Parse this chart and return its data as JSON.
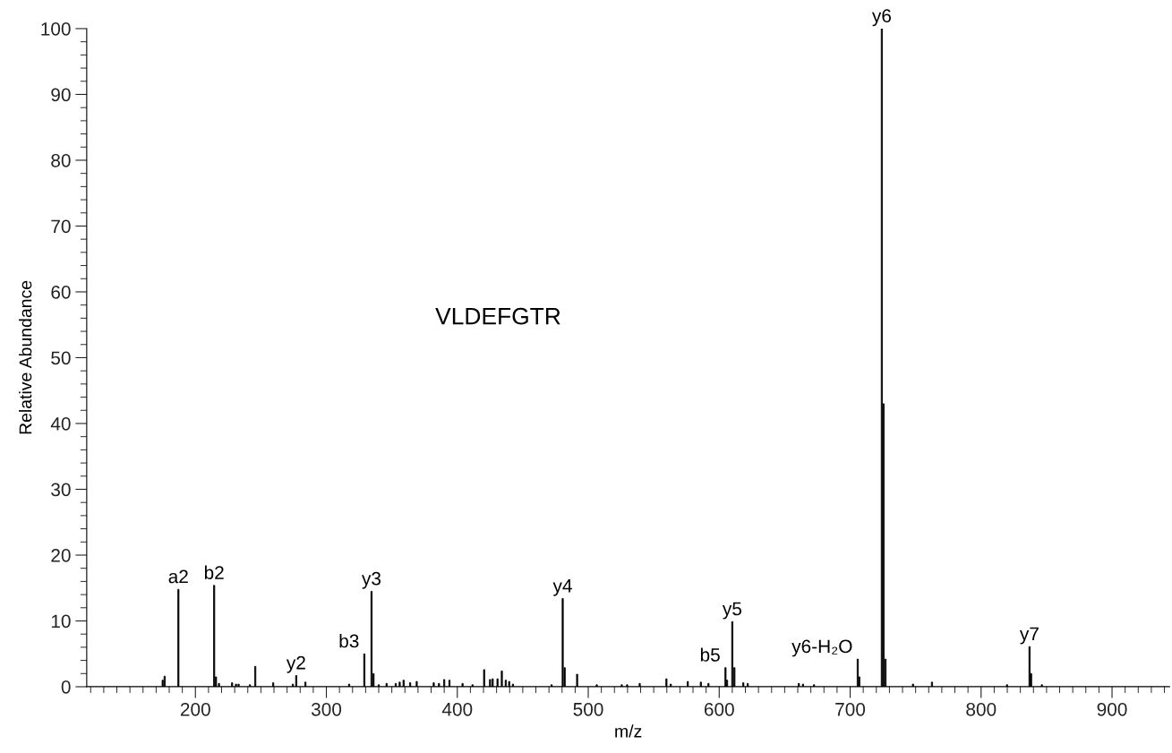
{
  "chart_data": {
    "type": "bar",
    "xlabel": "m/z",
    "ylabel": "Relative Abundance",
    "color": "#000000",
    "x": [
      175,
      176.5,
      187,
      214.3,
      215.7,
      218,
      228,
      231,
      233,
      241.6,
      245.7,
      259.4,
      274.4,
      277,
      284,
      317.4,
      329,
      334.5,
      336,
      340,
      346,
      353,
      356,
      359,
      364,
      369,
      382,
      386,
      390,
      394,
      404,
      411.6,
      420.5,
      425,
      427,
      430.7,
      434,
      437,
      439.6,
      442.5,
      472,
      480.5,
      482,
      491.5,
      506.5,
      525.6,
      529.7,
      539.3,
      559.7,
      563,
      576,
      586,
      591.8,
      604.8,
      606,
      610,
      611.6,
      618.4,
      621.8,
      660.8,
      664,
      672.4,
      705.8,
      707,
      724.2,
      725.5,
      727,
      748,
      762.5,
      819.8,
      837,
      838.2,
      846.4
    ],
    "values": [
      1.0,
      1.6,
      14.8,
      15.4,
      1.5,
      0.5,
      0.6,
      0.4,
      0.4,
      0.3,
      3.1,
      0.6,
      0.4,
      1.7,
      0.7,
      0.4,
      5.0,
      14.5,
      2.0,
      0.3,
      0.5,
      0.5,
      0.7,
      1.0,
      0.6,
      0.8,
      0.6,
      0.5,
      1.1,
      1.0,
      0.5,
      0.3,
      2.6,
      1.1,
      1.2,
      1.2,
      2.4,
      1.0,
      0.8,
      0.4,
      0.3,
      13.4,
      2.9,
      1.9,
      0.3,
      0.3,
      0.3,
      0.5,
      1.2,
      0.4,
      0.8,
      0.7,
      0.5,
      2.9,
      1.0,
      9.9,
      2.9,
      0.6,
      0.5,
      0.5,
      0.4,
      0.3,
      4.2,
      1.5,
      100,
      43,
      4.2,
      0.4,
      0.7,
      0.3,
      6.1,
      2.0,
      0.3
    ],
    "xlim": [
      117,
      944
    ],
    "xticks": [
      200,
      300,
      400,
      500,
      600,
      700,
      800,
      900
    ],
    "ylim": [
      0,
      100
    ],
    "yticks": [
      0,
      10,
      20,
      30,
      40,
      50,
      60,
      70,
      80,
      90,
      100
    ],
    "grid": false,
    "annotations": [
      "VLDEFGTR",
      {
        "text": "a2",
        "x": 187,
        "y": 14.8
      },
      {
        "text": "b2",
        "x": 214.3,
        "y": 15.4
      },
      {
        "text": "y2",
        "x": 277,
        "y": 1.7
      },
      {
        "text": "b3",
        "x": 329,
        "y": 5.0
      },
      {
        "text": "y3",
        "x": 334.5,
        "y": 14.5
      },
      {
        "text": "y4",
        "x": 480.5,
        "y": 13.4
      },
      {
        "text": "b5",
        "x": 604.8,
        "y": 2.9
      },
      {
        "text": "y5",
        "x": 610,
        "y": 9.9
      },
      {
        "text": "y6-H₂O",
        "x": 705.8,
        "y": 4.2
      },
      {
        "text": "y6",
        "x": 724.2,
        "y": 100
      },
      {
        "text": "y7",
        "x": 837,
        "y": 6.1
      }
    ]
  }
}
